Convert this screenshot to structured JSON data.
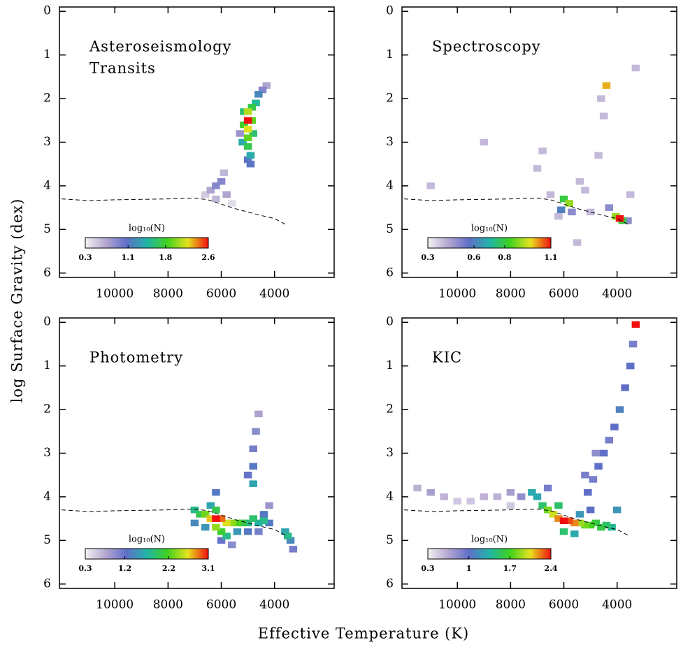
{
  "figure": {
    "xlabel": "Effective Temperature (K)",
    "ylabel": "log Surface Gravity (dex)"
  },
  "chart_data": [
    {
      "type": "heatmap",
      "title": [
        "Asteroseismology",
        "Transits"
      ],
      "x": [
        5000,
        5000,
        5000,
        4850,
        5150,
        5000,
        5000,
        4900,
        4900,
        4700,
        4600,
        4450,
        4300,
        5200,
        5300,
        4800,
        6200,
        6000,
        6400,
        5800,
        6600,
        5900,
        5600,
        6200,
        5000,
        5150,
        4850
      ],
      "y": [
        2.5,
        2.3,
        2.7,
        2.5,
        2.6,
        2.9,
        3.1,
        3.3,
        3.5,
        2.1,
        1.9,
        1.8,
        1.7,
        3.0,
        2.8,
        2.8,
        4.0,
        3.9,
        4.1,
        4.2,
        4.2,
        3.7,
        4.4,
        4.3,
        3.4,
        2.3,
        2.2
      ],
      "values": [
        2.6,
        2.1,
        2.2,
        1.9,
        1.8,
        1.9,
        1.7,
        1.4,
        1.1,
        1.5,
        1.2,
        0.9,
        0.7,
        1.4,
        0.8,
        1.6,
        0.9,
        0.9,
        0.7,
        0.7,
        0.5,
        0.6,
        0.4,
        0.6,
        1.1,
        1.6,
        1.7
      ],
      "colorbar_label": "log₁₀(N)",
      "colorbar_ticks": [
        0.3,
        1.1,
        1.8,
        2.6
      ],
      "curve": {
        "x": [
          12000,
          11000,
          10000,
          9000,
          8000,
          7000,
          6500,
          6000,
          5500,
          5000,
          4500,
          4000,
          3600
        ],
        "y": [
          4.3,
          4.34,
          4.32,
          4.31,
          4.3,
          4.28,
          4.32,
          4.42,
          4.52,
          4.6,
          4.68,
          4.75,
          4.88
        ]
      },
      "xlim": [
        12080,
        1760
      ],
      "ylim": [
        6.1,
        -0.1
      ],
      "xticks": [
        10000,
        8000,
        6000,
        4000
      ],
      "yticks": [
        0,
        1,
        2,
        3,
        4,
        5,
        6
      ]
    },
    {
      "type": "heatmap",
      "title": [
        "Spectroscopy"
      ],
      "x": [
        5800,
        6000,
        5700,
        3900,
        4050,
        3800,
        4300,
        5000,
        6500,
        7000,
        5400,
        4700,
        3600,
        9000,
        6200,
        5200,
        4500,
        3300,
        4400,
        6800,
        11000,
        5500,
        3500,
        4600,
        6100
      ],
      "y": [
        4.4,
        4.3,
        4.6,
        4.75,
        4.7,
        4.8,
        4.5,
        4.6,
        4.2,
        3.6,
        3.9,
        3.3,
        4.8,
        3.0,
        4.7,
        4.1,
        2.4,
        1.3,
        1.7,
        3.2,
        4.0,
        5.3,
        4.2,
        2.0,
        4.55
      ],
      "values": [
        0.9,
        0.8,
        0.5,
        1.1,
        0.9,
        0.8,
        0.5,
        0.4,
        0.4,
        0.4,
        0.4,
        0.4,
        0.5,
        0.4,
        0.4,
        0.4,
        0.4,
        0.4,
        1.0,
        0.4,
        0.4,
        0.4,
        0.4,
        0.4,
        0.6
      ],
      "colorbar_label": "log₁₀(N)",
      "colorbar_ticks": [
        0.3,
        0.6,
        0.8,
        1.1
      ],
      "curve": {
        "x": [
          12000,
          11000,
          10000,
          9000,
          8000,
          7000,
          6500,
          6000,
          5500,
          5000,
          4500,
          4000,
          3600
        ],
        "y": [
          4.3,
          4.34,
          4.32,
          4.31,
          4.3,
          4.28,
          4.32,
          4.42,
          4.52,
          4.6,
          4.68,
          4.75,
          4.88
        ]
      },
      "xlim": [
        12080,
        1760
      ],
      "ylim": [
        6.1,
        -0.1
      ],
      "xticks": [
        10000,
        8000,
        6000,
        4000
      ],
      "yticks": [
        0,
        1,
        2,
        3,
        4,
        5,
        6
      ]
    },
    {
      "type": "heatmap",
      "title": [
        "Photometry"
      ],
      "x": [
        6200,
        6000,
        6400,
        5800,
        6600,
        6200,
        5600,
        6800,
        7000,
        5400,
        5200,
        5000,
        4800,
        4600,
        4400,
        4200,
        6200,
        6000,
        5800,
        6400,
        6600,
        7000,
        5400,
        5000,
        4600,
        6000,
        5600,
        6200,
        4800,
        4800,
        4800,
        4700,
        4600,
        5000,
        3600,
        3400,
        3500,
        3300,
        4400,
        4200
      ],
      "y": [
        4.5,
        4.5,
        4.5,
        4.6,
        4.4,
        4.7,
        4.6,
        4.4,
        4.3,
        4.6,
        4.6,
        4.6,
        4.5,
        4.6,
        4.55,
        4.6,
        4.3,
        4.8,
        4.9,
        4.2,
        4.7,
        4.6,
        4.8,
        4.8,
        4.8,
        5.0,
        5.1,
        3.9,
        3.7,
        3.3,
        2.9,
        2.5,
        2.1,
        3.5,
        4.8,
        5.0,
        4.9,
        5.2,
        4.4,
        4.2
      ],
      "values": [
        3.1,
        2.9,
        2.7,
        2.6,
        2.3,
        2.4,
        2.4,
        2.0,
        1.8,
        2.2,
        2.0,
        1.8,
        1.9,
        1.7,
        1.8,
        1.3,
        2.0,
        2.1,
        1.8,
        1.6,
        1.5,
        1.4,
        1.5,
        1.3,
        1.1,
        1.2,
        1.0,
        1.3,
        1.6,
        1.3,
        1.1,
        1.0,
        0.8,
        1.2,
        1.6,
        1.4,
        1.8,
        1.1,
        1.3,
        0.9
      ],
      "colorbar_label": "log₁₀(N)",
      "colorbar_ticks": [
        0.3,
        1.2,
        2.2,
        3.1
      ],
      "curve": {
        "x": [
          12000,
          11000,
          10000,
          9000,
          8000,
          7000,
          6500,
          6000,
          5500,
          5000,
          4500,
          4000,
          3600
        ],
        "y": [
          4.3,
          4.34,
          4.32,
          4.31,
          4.3,
          4.28,
          4.32,
          4.42,
          4.52,
          4.6,
          4.68,
          4.75,
          4.88
        ]
      },
      "xlim": [
        12080,
        1760
      ],
      "ylim": [
        6.1,
        -0.1
      ],
      "xticks": [
        10000,
        8000,
        6000,
        4000
      ],
      "yticks": [
        0,
        1,
        2,
        3,
        4,
        5,
        6
      ]
    },
    {
      "type": "heatmap",
      "title": [
        "KIC"
      ],
      "x": [
        6000,
        5800,
        6200,
        5600,
        6400,
        5400,
        5200,
        6600,
        5000,
        4800,
        4600,
        4400,
        4200,
        6800,
        7000,
        6000,
        5600,
        6200,
        5400,
        5000,
        3300,
        3400,
        3500,
        3700,
        3900,
        4100,
        4300,
        4500,
        4700,
        4900,
        5100,
        7200,
        7600,
        8000,
        8500,
        9000,
        9500,
        10000,
        10500,
        11000,
        11500,
        8000,
        6600,
        4000,
        4800,
        5200
      ],
      "y": [
        4.55,
        4.55,
        4.5,
        4.6,
        4.4,
        4.6,
        4.65,
        4.3,
        4.65,
        4.6,
        4.7,
        4.65,
        4.7,
        4.2,
        4.0,
        4.8,
        4.85,
        4.2,
        4.4,
        4.3,
        0.05,
        0.5,
        1.0,
        1.5,
        2.0,
        2.4,
        2.7,
        3.0,
        3.3,
        3.6,
        3.9,
        3.9,
        4.0,
        3.9,
        4.0,
        4.0,
        4.1,
        4.1,
        4.0,
        3.9,
        3.8,
        4.2,
        3.8,
        4.3,
        3.0,
        3.5
      ],
      "values": [
        2.4,
        2.3,
        2.2,
        2.2,
        2.0,
        1.9,
        1.8,
        1.8,
        1.7,
        1.6,
        1.6,
        1.5,
        1.4,
        1.5,
        1.3,
        1.5,
        1.3,
        1.5,
        1.2,
        1.0,
        2.4,
        0.9,
        1.0,
        1.0,
        1.1,
        1.0,
        0.9,
        1.0,
        1.0,
        0.9,
        1.0,
        1.3,
        0.8,
        0.7,
        0.6,
        0.6,
        0.5,
        0.5,
        0.6,
        0.7,
        0.6,
        0.5,
        0.9,
        1.2,
        0.8,
        0.9
      ],
      "colorbar_label": "log₁₀(N)",
      "colorbar_ticks": [
        0.3,
        1.0,
        1.7,
        2.4
      ],
      "curve": {
        "x": [
          12000,
          11000,
          10000,
          9000,
          8000,
          7000,
          6500,
          6000,
          5500,
          5000,
          4500,
          4000,
          3600
        ],
        "y": [
          4.3,
          4.34,
          4.32,
          4.31,
          4.3,
          4.28,
          4.32,
          4.42,
          4.52,
          4.6,
          4.68,
          4.75,
          4.88
        ]
      },
      "xlim": [
        12080,
        1760
      ],
      "ylim": [
        6.1,
        -0.1
      ],
      "xticks": [
        10000,
        8000,
        6000,
        4000
      ],
      "yticks": [
        0,
        1,
        2,
        3,
        4,
        5,
        6
      ]
    }
  ],
  "colormap": [
    "#f2f2f2",
    "#b4a6d0",
    "#5f6fc8",
    "#22b4a8",
    "#3fd21e",
    "#e6e21e",
    "#f01010"
  ]
}
